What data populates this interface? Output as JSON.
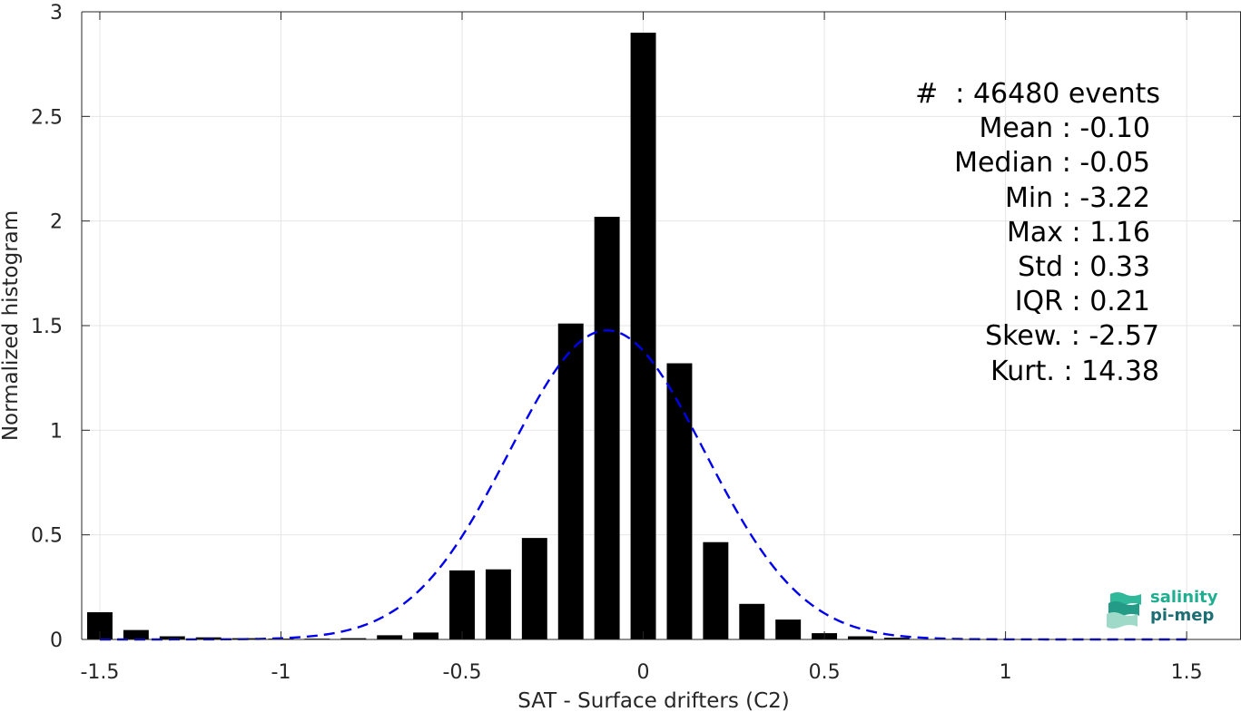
{
  "chart_data": {
    "type": "bar",
    "xlabel": "SAT - Surface drifters (C2)",
    "ylabel": "Normalized histogram",
    "xlim": [
      -1.55,
      1.65
    ],
    "ylim": [
      0,
      3
    ],
    "grid": true,
    "xticks": [
      -1.5,
      -1,
      -0.5,
      0,
      0.5,
      1,
      1.5
    ],
    "xtick_labels": [
      "-1.5",
      "-1",
      "-0.5",
      "0",
      "0.5",
      "1",
      "1.5"
    ],
    "yticks": [
      0,
      0.5,
      1,
      1.5,
      2,
      2.5,
      3
    ],
    "ytick_labels": [
      "0",
      "0.5",
      "1",
      "1.5",
      "2",
      "2.5",
      "3"
    ],
    "bar_width": 0.07,
    "bar_color": "#000000",
    "bins": [
      {
        "x": -1.5,
        "y": 0.13
      },
      {
        "x": -1.4,
        "y": 0.045
      },
      {
        "x": -1.3,
        "y": 0.015
      },
      {
        "x": -1.2,
        "y": 0.01
      },
      {
        "x": -1.1,
        "y": 0.006
      },
      {
        "x": -1.0,
        "y": 0.004
      },
      {
        "x": -0.9,
        "y": 0.004
      },
      {
        "x": -0.8,
        "y": 0.006
      },
      {
        "x": -0.7,
        "y": 0.02
      },
      {
        "x": -0.6,
        "y": 0.033
      },
      {
        "x": -0.5,
        "y": 0.33
      },
      {
        "x": -0.4,
        "y": 0.335
      },
      {
        "x": -0.3,
        "y": 0.485
      },
      {
        "x": -0.2,
        "y": 1.51
      },
      {
        "x": -0.1,
        "y": 2.02
      },
      {
        "x": 0.0,
        "y": 2.9
      },
      {
        "x": 0.1,
        "y": 1.32
      },
      {
        "x": 0.2,
        "y": 0.465
      },
      {
        "x": 0.3,
        "y": 0.17
      },
      {
        "x": 0.4,
        "y": 0.095
      },
      {
        "x": 0.5,
        "y": 0.03
      },
      {
        "x": 0.6,
        "y": 0.015
      },
      {
        "x": 0.7,
        "y": 0.008
      }
    ],
    "fit_curve": {
      "style": "dashed",
      "color": "#0000ee",
      "mean": -0.1,
      "std": 0.27,
      "x_range": [
        -1.5,
        1.5
      ]
    },
    "stats": [
      {
        "label": "#  ",
        "value": ": 46480 events"
      },
      {
        "label": "Mean ",
        "value": ": -0.10"
      },
      {
        "label": "Median ",
        "value": ": -0.05"
      },
      {
        "label": "Min ",
        "value": ": -3.22"
      },
      {
        "label": "Max ",
        "value": ": 1.16"
      },
      {
        "label": "Std ",
        "value": ": 0.33"
      },
      {
        "label": "IQR ",
        "value": ": 0.21"
      },
      {
        "label": "Skew. ",
        "value": ": -2.57"
      },
      {
        "label": "Kurt. ",
        "value": ": 14.38"
      }
    ]
  },
  "logo": {
    "line1": "salinity",
    "line2": "pi-mep",
    "color1": "#1fae8f",
    "color2": "#1d6e73",
    "icon": "waves-icon"
  }
}
